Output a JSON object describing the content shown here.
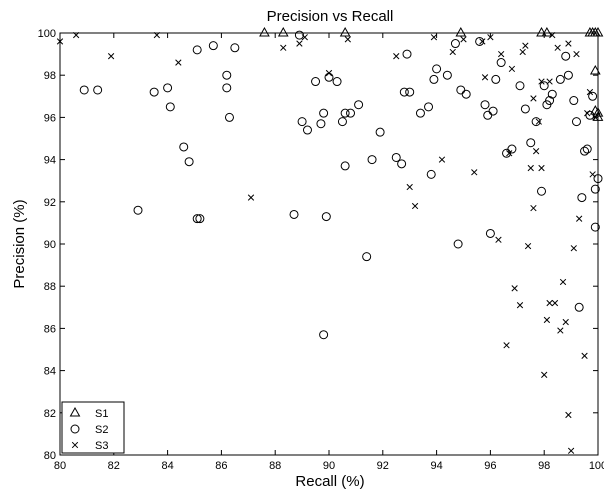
{
  "chart_data": {
    "type": "scatter",
    "title": "Precision vs Recall",
    "xlabel": "Recall (%)",
    "ylabel": "Precision (%)",
    "xlim": [
      80,
      100
    ],
    "ylim": [
      80,
      100
    ],
    "x_ticks": [
      "80",
      "82",
      "84",
      "86",
      "88",
      "90",
      "92",
      "94",
      "96",
      "98",
      "100"
    ],
    "y_ticks": [
      "80",
      "82",
      "84",
      "86",
      "88",
      "90",
      "92",
      "94",
      "96",
      "98",
      "100"
    ],
    "grid": false,
    "legend_position": "bottom-left",
    "series": [
      {
        "name": "S1",
        "marker": "triangle",
        "color": "#000000",
        "x": [
          87.6,
          88.3,
          90.6,
          94.9,
          97.9,
          98.1,
          99.7,
          99.8,
          99.9,
          99.9,
          100.0,
          100.0,
          99.9,
          100.0
        ],
        "y": [
          100.0,
          100.0,
          100.0,
          100.0,
          100.0,
          100.0,
          100.0,
          100.0,
          100.0,
          96.3,
          96.2,
          96.0,
          98.2,
          100.0
        ]
      },
      {
        "name": "S2",
        "marker": "circle",
        "color": "#000000",
        "x": [
          80.9,
          81.4,
          82.9,
          83.5,
          84.1,
          84.0,
          84.6,
          84.8,
          85.1,
          85.2,
          85.1,
          85.7,
          86.2,
          86.2,
          86.3,
          86.5,
          88.7,
          88.9,
          89.0,
          89.2,
          89.5,
          89.7,
          89.8,
          89.8,
          89.9,
          90.0,
          90.3,
          90.5,
          90.6,
          90.6,
          90.8,
          91.1,
          91.4,
          91.6,
          91.9,
          92.5,
          92.7,
          92.8,
          92.9,
          93.0,
          93.4,
          93.7,
          93.8,
          93.9,
          94.0,
          94.4,
          94.7,
          94.8,
          94.9,
          95.1,
          95.6,
          95.8,
          95.9,
          96.0,
          96.1,
          96.2,
          96.4,
          96.6,
          96.8,
          97.1,
          97.3,
          97.5,
          97.7,
          97.9,
          98.0,
          98.1,
          98.2,
          98.3,
          98.6,
          98.8,
          98.9,
          99.1,
          99.2,
          99.3,
          99.4,
          99.5,
          99.6,
          99.7,
          99.8,
          99.9,
          99.9,
          100.0
        ],
        "y": [
          97.3,
          97.3,
          91.6,
          97.2,
          96.5,
          97.4,
          94.6,
          93.9,
          91.2,
          91.2,
          99.2,
          99.4,
          98.0,
          97.4,
          96.0,
          99.3,
          91.4,
          99.9,
          95.8,
          95.4,
          97.7,
          95.7,
          96.2,
          85.7,
          91.3,
          97.9,
          97.7,
          95.8,
          96.2,
          93.7,
          96.2,
          96.6,
          89.4,
          94.0,
          95.3,
          94.1,
          93.8,
          97.2,
          99.0,
          97.2,
          96.2,
          96.5,
          93.3,
          97.8,
          98.3,
          98.0,
          99.5,
          90.0,
          97.3,
          97.1,
          99.6,
          96.6,
          96.1,
          90.5,
          96.3,
          97.8,
          98.6,
          94.3,
          94.5,
          97.5,
          96.4,
          94.8,
          95.8,
          92.5,
          97.5,
          96.6,
          96.8,
          97.1,
          97.8,
          98.9,
          98.0,
          96.8,
          95.8,
          87.0,
          92.2,
          94.4,
          94.5,
          96.1,
          97.0,
          90.8,
          92.6,
          93.1
        ]
      },
      {
        "name": "S3",
        "marker": "x",
        "color": "#000000",
        "x": [
          80.0,
          80.6,
          81.9,
          83.6,
          84.4,
          87.1,
          88.3,
          88.9,
          89.1,
          90.0,
          90.7,
          92.5,
          93.0,
          93.2,
          93.9,
          94.2,
          94.6,
          95.0,
          95.4,
          95.7,
          96.0,
          96.3,
          96.6,
          96.7,
          96.9,
          97.1,
          97.3,
          97.4,
          97.5,
          97.6,
          97.7,
          97.9,
          98.0,
          98.1,
          98.2,
          98.4,
          98.6,
          98.7,
          98.8,
          98.9,
          99.0,
          99.1,
          99.3,
          99.5,
          99.7,
          99.8,
          99.9,
          97.8,
          98.3,
          98.5,
          99.2,
          97.2,
          96.8,
          96.4,
          95.8,
          97.9,
          98.9,
          99.6,
          98.2,
          97.6
        ],
        "y": [
          99.6,
          99.9,
          98.9,
          99.9,
          98.6,
          92.2,
          99.3,
          99.5,
          99.8,
          98.1,
          99.7,
          98.9,
          92.7,
          91.8,
          99.8,
          94.0,
          99.1,
          99.7,
          93.4,
          99.6,
          99.8,
          90.2,
          85.2,
          94.3,
          87.9,
          87.1,
          99.4,
          89.9,
          93.6,
          91.7,
          94.4,
          93.6,
          83.8,
          86.4,
          87.2,
          87.2,
          85.9,
          88.2,
          86.3,
          81.9,
          80.2,
          89.8,
          91.2,
          84.7,
          97.2,
          93.3,
          96.0,
          95.8,
          99.9,
          99.3,
          99.0,
          99.1,
          98.3,
          99.0,
          97.9,
          97.7,
          99.5,
          96.2,
          97.7,
          96.9
        ]
      }
    ]
  }
}
